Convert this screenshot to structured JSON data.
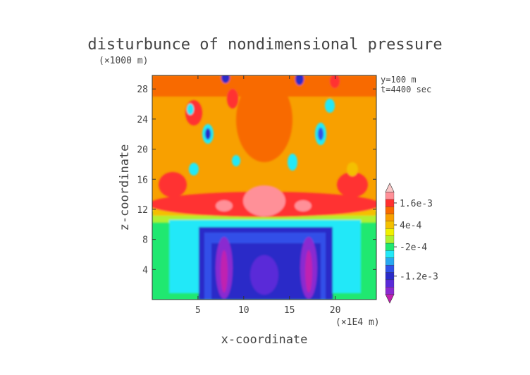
{
  "chart_data": {
    "type": "heatmap",
    "title": "disturbunce of nondimensional pressure",
    "z_unit_label": "(×1000 m)",
    "x_unit_label": "(×1E4 m)",
    "xlabel": "x-coordinate",
    "ylabel": "z-coordinate",
    "annotation_y": "y=100  m",
    "annotation_t": "t=4400 sec",
    "xlim": [
      0,
      24.5
    ],
    "ylim": [
      0,
      29.8
    ],
    "x_ticks": [
      5,
      10,
      15,
      20
    ],
    "y_ticks": [
      4,
      8,
      12,
      16,
      20,
      24,
      28
    ],
    "colorbar": {
      "levels": [
        "#c020b0",
        "#8a2ad0",
        "#5a2ad8",
        "#2a2ac8",
        "#3050e8",
        "#28a8f0",
        "#22e8f8",
        "#20e870",
        "#b0f030",
        "#f0f000",
        "#f4c000",
        "#f8a000",
        "#f86a00",
        "#ff3030",
        "#ff9098",
        "#f8c8c8"
      ],
      "labels": [
        {
          "text": "1.6e-3",
          "value": 0.0016
        },
        {
          "text": "4e-4",
          "value": 0.0004
        },
        {
          "text": "-2e-4",
          "value": -0.0002
        },
        {
          "text": "-1.2e-3",
          "value": -0.0012
        }
      ]
    }
  }
}
